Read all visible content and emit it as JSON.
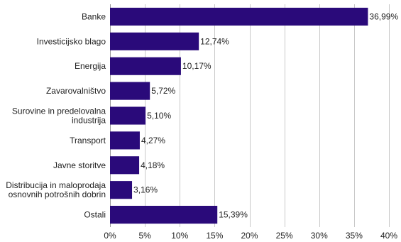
{
  "chart_data": {
    "type": "bar",
    "orientation": "horizontal",
    "title": "",
    "xlabel": "",
    "ylabel": "",
    "categories": [
      [
        "Banke"
      ],
      [
        "Investicijsko blago"
      ],
      [
        "Energija"
      ],
      [
        "Zavarovalništvo"
      ],
      [
        "Surovine in predelovalna",
        "industrija"
      ],
      [
        "Transport"
      ],
      [
        "Javne storitve"
      ],
      [
        "Distribucija in maloprodaja",
        "osnovnih potrošnih dobrin"
      ],
      [
        "Ostali"
      ]
    ],
    "values": [
      36.99,
      12.74,
      10.17,
      5.72,
      5.1,
      4.27,
      4.18,
      3.16,
      15.39
    ],
    "value_labels": [
      "36,99%",
      "12,74%",
      "10,17%",
      "5,72%",
      "5,10%",
      "4,27%",
      "4,18%",
      "3,16%",
      "15,39%"
    ],
    "xlim": [
      0,
      40
    ],
    "x_ticks": [
      0,
      5,
      10,
      15,
      20,
      25,
      30,
      35,
      40
    ],
    "x_tick_labels": [
      "0%",
      "5%",
      "10%",
      "15%",
      "20%",
      "25%",
      "30%",
      "35%",
      "40%"
    ],
    "grid": "vertical",
    "legend": "none",
    "bar_color": "#2a0a7a"
  }
}
